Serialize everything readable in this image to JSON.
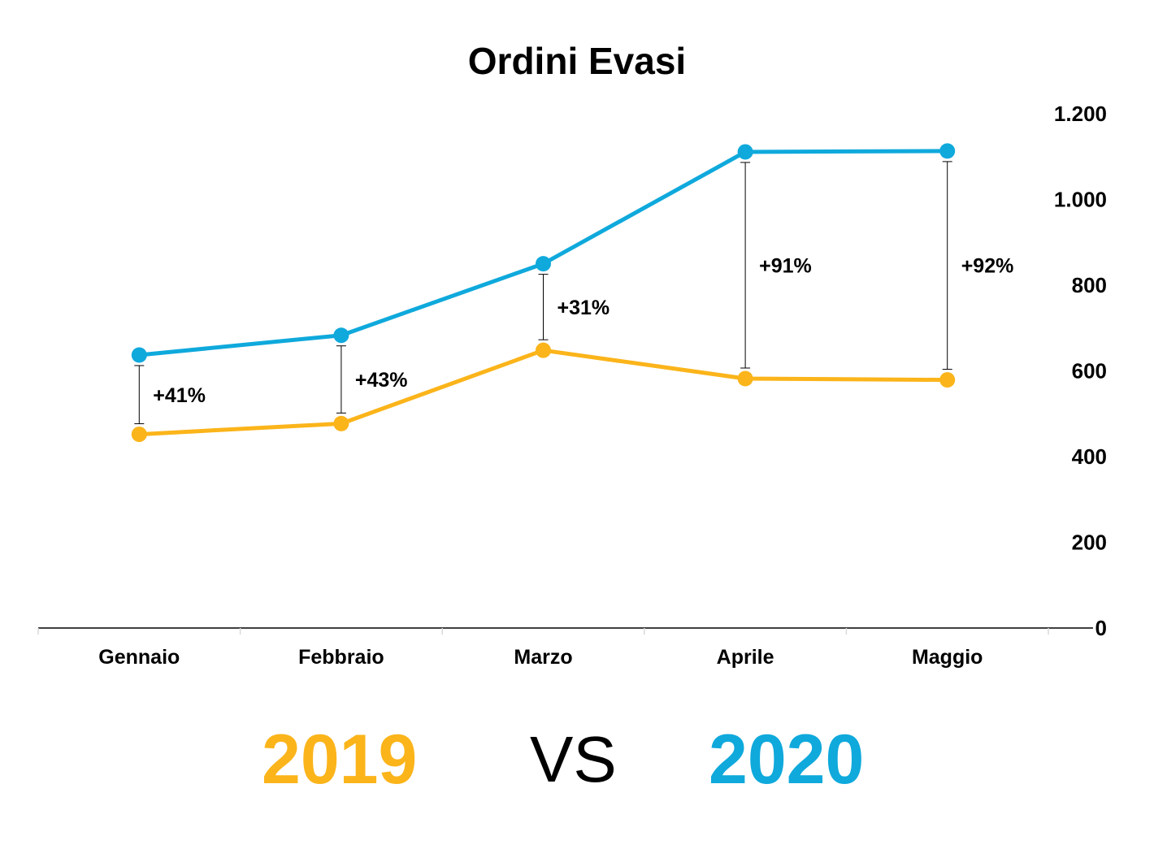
{
  "chart_data": {
    "type": "line",
    "title": "Ordini Evasi",
    "categories": [
      "Gennaio",
      "Febbraio",
      "Marzo",
      "Aprile",
      "Maggio"
    ],
    "series": [
      {
        "name": "2019",
        "color": "#FBB41A",
        "values": [
          452,
          477,
          648,
          582,
          579
        ]
      },
      {
        "name": "2020",
        "color": "#0FA9DC",
        "values": [
          637,
          683,
          850,
          1111,
          1113
        ]
      }
    ],
    "differences": [
      "+41%",
      "+43%",
      "+31%",
      "+91%",
      "+92%"
    ],
    "y_axis": {
      "position": "right",
      "ylim": [
        0,
        1200
      ],
      "ticks": [
        0,
        200,
        400,
        600,
        800,
        1000,
        1200
      ],
      "tick_labels": [
        "0",
        "200",
        "400",
        "600",
        "800",
        "1.000",
        "1.200"
      ]
    },
    "grid": false
  },
  "legend": {
    "left": "2019",
    "middle": "VS",
    "right": "2020"
  }
}
